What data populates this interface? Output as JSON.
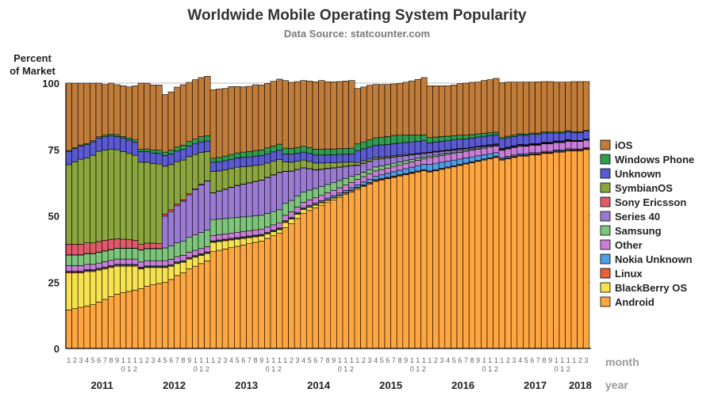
{
  "chart_data": {
    "type": "bar",
    "stacked": true,
    "title": "Worldwide Mobile Operating System Popularity",
    "subtitle": "Data Source: statcounter.com",
    "ylabel_line1": "Percent",
    "ylabel_line2": "of Market",
    "ylim": [
      0,
      100
    ],
    "yticks": [
      "0",
      "25",
      "50",
      "75",
      "100"
    ],
    "yticks_values": [
      0,
      25,
      50,
      75,
      100
    ],
    "grid": true,
    "legend_position": "right",
    "month_axis_label": "month",
    "year_axis_label": "year",
    "years": [
      {
        "label": "2011",
        "months": 12
      },
      {
        "label": "2012",
        "months": 12
      },
      {
        "label": "2013",
        "months": 12
      },
      {
        "label": "2014",
        "months": 12
      },
      {
        "label": "2015",
        "months": 12
      },
      {
        "label": "2016",
        "months": 12
      },
      {
        "label": "2017",
        "months": 12
      },
      {
        "label": "2018",
        "months": 3
      }
    ],
    "month_tick_labels": [
      "1",
      "2",
      "3",
      "4",
      "5",
      "6",
      "7",
      "8",
      "9",
      "10",
      "11",
      "12"
    ],
    "series": [
      {
        "name": "Android",
        "color": "#ffa640",
        "values": [
          14.5,
          15.0,
          15.5,
          16.0,
          16.5,
          17.5,
          18.5,
          19.5,
          20.5,
          21.0,
          21.5,
          22.0,
          22.5,
          23.5,
          24.0,
          24.5,
          25.0,
          26.0,
          27.5,
          28.5,
          30.0,
          31.0,
          32.0,
          33.0,
          36.5,
          37.0,
          37.5,
          38.0,
          38.5,
          39.0,
          39.5,
          40.0,
          40.5,
          41.5,
          42.5,
          43.5,
          45.5,
          47.0,
          49.0,
          51.0,
          52.0,
          53.0,
          54.0,
          55.0,
          56.0,
          57.0,
          58.0,
          59.0,
          60.0,
          61.0,
          62.0,
          63.0,
          63.5,
          64.0,
          64.5,
          65.0,
          65.5,
          66.0,
          66.5,
          67.0,
          66.5,
          67.0,
          67.5,
          68.0,
          68.5,
          69.0,
          69.5,
          70.0,
          70.5,
          71.0,
          71.5,
          72.0,
          71.0,
          71.5,
          72.0,
          72.5,
          72.5,
          73.0,
          73.0,
          73.5,
          73.5,
          74.0,
          74.0,
          74.5,
          74.5,
          74.5,
          75.0
        ]
      },
      {
        "name": "BlackBerry OS",
        "color": "#f6e24f",
        "values": [
          14.0,
          13.5,
          13.0,
          13.0,
          12.5,
          12.0,
          11.5,
          11.0,
          10.5,
          10.0,
          9.5,
          9.0,
          7.5,
          7.0,
          6.5,
          6.0,
          5.5,
          5.0,
          4.5,
          4.0,
          3.7,
          3.4,
          3.1,
          2.8,
          3.5,
          3.3,
          3.1,
          2.9,
          2.7,
          2.5,
          2.3,
          2.1,
          1.9,
          1.7,
          1.5,
          1.3,
          2.0,
          1.8,
          1.6,
          1.4,
          1.2,
          1.0,
          0.9,
          0.8,
          0.7,
          0.6,
          0.5,
          0.4,
          0.4,
          0.35,
          0.3,
          0.3,
          0.25,
          0.2,
          0.2,
          0.2,
          0.15,
          0.15,
          0.1,
          0.1,
          0.1,
          0.1,
          0.1,
          0.1,
          0.1,
          0.1,
          0.1,
          0.1,
          0.1,
          0.1,
          0.1,
          0.1,
          0.1,
          0.1,
          0.1,
          0.1,
          0.1,
          0.1,
          0.1,
          0.1,
          0.1,
          0.1,
          0.1,
          0.1,
          0.1,
          0.1,
          0.1
        ]
      },
      {
        "name": "Linux",
        "color": "#e8603c",
        "values": [
          0.4,
          0.4,
          0.4,
          0.4,
          0.4,
          0.4,
          0.4,
          0.4,
          0.4,
          0.4,
          0.4,
          0.4,
          0.3,
          0.3,
          0.3,
          0.3,
          0.3,
          0.3,
          0.3,
          0.3,
          0.3,
          0.3,
          0.3,
          0.3,
          0.3,
          0.3,
          0.3,
          0.3,
          0.3,
          0.3,
          0.3,
          0.3,
          0.3,
          0.3,
          0.3,
          0.3,
          0.3,
          0.3,
          0.3,
          0.3,
          0.3,
          0.3,
          0.3,
          0.3,
          0.3,
          0.3,
          0.3,
          0.3,
          0.3,
          0.3,
          0.3,
          0.3,
          0.3,
          0.3,
          0.3,
          0.3,
          0.3,
          0.3,
          0.3,
          0.3,
          0.3,
          0.3,
          0.3,
          0.3,
          0.3,
          0.3,
          0.3,
          0.3,
          0.3,
          0.3,
          0.3,
          0.3,
          0.3,
          0.3,
          0.3,
          0.3,
          0.3,
          0.3,
          0.3,
          0.3,
          0.3,
          0.3,
          0.3,
          0.3,
          0.3,
          0.3,
          0.3
        ]
      },
      {
        "name": "Nokia Unknown",
        "color": "#4f9ee8",
        "values": [
          0.3,
          0.3,
          0.3,
          0.3,
          0.3,
          0.3,
          0.3,
          0.3,
          0.3,
          0.3,
          0.3,
          0.3,
          0.3,
          0.3,
          0.3,
          0.3,
          0.3,
          0.3,
          0.3,
          0.3,
          0.3,
          0.3,
          0.3,
          0.3,
          0.3,
          0.3,
          0.3,
          0.3,
          0.3,
          0.3,
          0.3,
          0.3,
          0.3,
          0.3,
          0.3,
          0.3,
          0.4,
          0.4,
          0.4,
          0.4,
          0.5,
          0.5,
          0.5,
          0.6,
          0.6,
          0.7,
          0.8,
          0.9,
          1.0,
          1.1,
          1.2,
          1.3,
          1.4,
          1.5,
          1.6,
          1.7,
          1.8,
          1.9,
          2.0,
          2.0,
          2.5,
          2.4,
          2.3,
          2.2,
          2.1,
          2.0,
          1.9,
          1.8,
          1.7,
          1.6,
          1.5,
          1.4,
          0.5,
          0.5,
          0.5,
          0.5,
          0.5,
          0.4,
          0.4,
          0.4,
          0.4,
          0.4,
          0.4,
          0.4,
          0.3,
          0.3,
          0.3
        ]
      },
      {
        "name": "Other",
        "color": "#c97fd8",
        "values": [
          2.0,
          2.0,
          2.0,
          2.0,
          2.0,
          2.0,
          2.0,
          2.0,
          2.0,
          2.0,
          2.0,
          2.0,
          2.0,
          2.0,
          2.0,
          2.0,
          2.0,
          2.0,
          2.0,
          2.0,
          2.0,
          2.0,
          2.0,
          2.0,
          2.0,
          2.0,
          2.0,
          2.0,
          2.0,
          2.0,
          2.0,
          2.0,
          2.0,
          2.0,
          2.0,
          2.0,
          2.0,
          2.0,
          2.0,
          2.0,
          2.0,
          2.0,
          2.0,
          2.0,
          2.0,
          2.0,
          2.0,
          2.0,
          2.0,
          2.0,
          2.0,
          2.0,
          2.0,
          2.0,
          2.0,
          2.0,
          2.0,
          2.0,
          2.0,
          2.0,
          2.5,
          2.5,
          2.5,
          2.5,
          2.5,
          2.5,
          2.5,
          2.5,
          2.5,
          2.5,
          2.5,
          2.5,
          2.8,
          2.8,
          2.8,
          2.8,
          2.8,
          2.8,
          2.8,
          2.8,
          2.8,
          2.8,
          2.8,
          2.8,
          2.8,
          2.8,
          2.8
        ]
      },
      {
        "name": "Samsung",
        "color": "#7bc67b",
        "values": [
          4.0,
          4.0,
          4.0,
          4.0,
          4.0,
          4.0,
          4.0,
          4.0,
          4.0,
          4.0,
          4.0,
          4.0,
          4.5,
          4.5,
          4.5,
          4.5,
          4.8,
          5.0,
          5.2,
          5.4,
          5.6,
          5.8,
          6.0,
          6.2,
          6.0,
          5.9,
          5.8,
          5.7,
          5.6,
          5.5,
          5.4,
          5.3,
          5.2,
          5.1,
          5.0,
          4.9,
          4.5,
          4.3,
          4.1,
          3.9,
          3.7,
          3.5,
          3.3,
          3.1,
          2.9,
          2.7,
          2.5,
          2.3,
          1.8,
          1.7,
          1.6,
          1.5,
          1.4,
          1.3,
          1.2,
          1.1,
          1.0,
          0.9,
          0.8,
          0.7,
          0.6,
          0.6,
          0.6,
          0.5,
          0.5,
          0.5,
          0.4,
          0.4,
          0.4,
          0.4,
          0.3,
          0.3,
          0.2,
          0.2,
          0.2,
          0.2,
          0.2,
          0.2,
          0.2,
          0.2,
          0.2,
          0.2,
          0.2,
          0.2,
          0.1,
          0.1,
          0.1
        ]
      },
      {
        "name": "Series 40",
        "color": "#9b7ad4",
        "values": [
          0.1,
          0.1,
          0.1,
          0.1,
          0.1,
          0.1,
          0.1,
          0.1,
          0.1,
          0.1,
          0.1,
          0.1,
          0.1,
          0.1,
          0.1,
          0.1,
          12.0,
          13.0,
          14.0,
          15.0,
          16.0,
          17.0,
          18.0,
          18.5,
          10.0,
          10.5,
          11.0,
          11.5,
          12.0,
          12.3,
          12.6,
          12.9,
          13.2,
          13.5,
          13.8,
          14.0,
          12.0,
          11.0,
          10.0,
          9.0,
          8.0,
          7.0,
          6.5,
          6.0,
          5.5,
          5.0,
          4.5,
          4.0,
          3.5,
          3.3,
          3.1,
          2.9,
          2.7,
          2.5,
          2.3,
          2.1,
          1.9,
          1.7,
          1.5,
          1.3,
          1.2,
          1.1,
          1.0,
          0.9,
          0.8,
          0.7,
          0.6,
          0.5,
          0.5,
          0.4,
          0.4,
          0.3,
          0.3,
          0.3,
          0.3,
          0.3,
          0.2,
          0.2,
          0.2,
          0.2,
          0.2,
          0.2,
          0.2,
          0.2,
          0.1,
          0.1,
          0.1
        ]
      },
      {
        "name": "Sony Ericsson",
        "color": "#e05a6a",
        "values": [
          4.0,
          4.0,
          4.0,
          4.0,
          4.0,
          4.0,
          4.0,
          3.8,
          3.6,
          3.4,
          3.2,
          3.0,
          2.0,
          2.0,
          2.0,
          1.8,
          0.8,
          0.7,
          0.6,
          0.5,
          0.4,
          0.3,
          0.2,
          0.1,
          0.1,
          0.1,
          0.1,
          0.1,
          0.1,
          0.1,
          0.1,
          0.1,
          0.1,
          0.1,
          0.1,
          0.1,
          0.1,
          0.1,
          0.1,
          0.1,
          0.1,
          0.1,
          0.1,
          0.1,
          0.1,
          0.1,
          0.1,
          0.1,
          0.1,
          0.1,
          0.1,
          0.1,
          0.1,
          0.1,
          0.1,
          0.1,
          0.1,
          0.1,
          0.1,
          0.1,
          0.1,
          0.1,
          0.1,
          0.1,
          0.1,
          0.1,
          0.1,
          0.1,
          0.1,
          0.1,
          0.1,
          0.1,
          0.1,
          0.1,
          0.1,
          0.1,
          0.1,
          0.1,
          0.1,
          0.1,
          0.1,
          0.1,
          0.1,
          0.1,
          0.1,
          0.1,
          0.1
        ]
      },
      {
        "name": "SymbianOS",
        "color": "#8aa63c",
        "values": [
          30.0,
          31.0,
          32.0,
          32.0,
          33.0,
          34.0,
          34.0,
          34.0,
          33.5,
          33.0,
          32.5,
          32.0,
          31.0,
          30.5,
          30.0,
          30.0,
          18.0,
          17.0,
          16.0,
          15.0,
          14.0,
          13.0,
          12.0,
          11.0,
          8.0,
          7.5,
          7.2,
          7.0,
          6.8,
          6.5,
          6.2,
          6.0,
          5.7,
          5.4,
          5.1,
          4.8,
          3.5,
          3.3,
          3.1,
          2.9,
          2.7,
          2.5,
          2.3,
          2.1,
          1.9,
          1.7,
          1.5,
          1.3,
          1.0,
          0.9,
          0.8,
          0.7,
          0.6,
          0.5,
          0.5,
          0.4,
          0.4,
          0.3,
          0.3,
          0.3,
          0.2,
          0.2,
          0.2,
          0.2,
          0.2,
          0.2,
          0.1,
          0.1,
          0.1,
          0.1,
          0.1,
          0.1,
          0.1,
          0.1,
          0.1,
          0.1,
          0.1,
          0.1,
          0.1,
          0.1,
          0.1,
          0.1,
          0.1,
          0.1,
          0.1,
          0.1,
          0.1
        ]
      },
      {
        "name": "Unknown",
        "color": "#5a5ad4",
        "values": [
          5.0,
          5.0,
          5.0,
          5.0,
          5.0,
          5.0,
          5.0,
          5.0,
          5.0,
          5.0,
          5.0,
          5.0,
          4.0,
          4.0,
          4.0,
          4.0,
          4.0,
          4.0,
          4.0,
          4.0,
          4.0,
          4.0,
          4.0,
          4.0,
          3.5,
          3.5,
          3.5,
          3.5,
          3.5,
          3.5,
          3.5,
          3.5,
          3.5,
          3.5,
          3.5,
          3.5,
          3.0,
          3.0,
          3.0,
          3.0,
          3.0,
          3.0,
          3.0,
          3.0,
          3.0,
          3.0,
          3.0,
          3.0,
          4.5,
          4.5,
          4.5,
          4.5,
          4.5,
          4.5,
          4.5,
          4.5,
          4.5,
          4.5,
          4.5,
          4.5,
          3.5,
          3.5,
          3.5,
          3.5,
          3.5,
          3.5,
          3.5,
          3.5,
          3.5,
          3.5,
          3.5,
          3.5,
          3.5,
          3.5,
          3.5,
          3.5,
          3.5,
          3.5,
          3.5,
          3.5,
          3.5,
          3.0,
          3.0,
          3.0,
          3.0,
          3.0,
          3.0
        ]
      },
      {
        "name": "Windows Phone",
        "color": "#2e9e4e",
        "values": [
          0.3,
          0.3,
          0.4,
          0.4,
          0.5,
          0.5,
          0.6,
          0.6,
          0.7,
          0.7,
          0.8,
          0.8,
          0.9,
          1.0,
          1.1,
          1.2,
          1.3,
          1.4,
          1.5,
          1.6,
          1.7,
          1.8,
          1.9,
          2.0,
          1.5,
          1.6,
          1.7,
          1.8,
          1.9,
          2.0,
          2.0,
          2.1,
          2.1,
          2.2,
          2.2,
          2.3,
          2.2,
          2.2,
          2.2,
          2.2,
          2.2,
          2.2,
          2.2,
          2.2,
          2.2,
          2.2,
          2.2,
          2.2,
          2.5,
          2.6,
          2.7,
          2.8,
          2.9,
          3.0,
          3.1,
          3.0,
          2.8,
          2.6,
          2.4,
          2.2,
          2.0,
          1.9,
          1.8,
          1.7,
          1.6,
          1.5,
          1.4,
          1.3,
          1.2,
          1.1,
          1.0,
          0.9,
          0.6,
          0.6,
          0.6,
          0.5,
          0.5,
          0.5,
          0.5,
          0.4,
          0.4,
          0.4,
          0.4,
          0.4,
          0.3,
          0.3,
          0.3
        ]
      },
      {
        "name": "iOS",
        "color": "#c17c3a",
        "values": [
          25.4,
          24.4,
          23.3,
          22.8,
          21.7,
          20.2,
          19.1,
          19.3,
          18.8,
          19.1,
          19.3,
          20.4,
          24.9,
          24.8,
          24.5,
          24.6,
          21.7,
          22.0,
          22.6,
          22.8,
          22.3,
          22.4,
          22.3,
          22.4,
          25.8,
          25.8,
          25.5,
          25.6,
          25.0,
          24.6,
          24.6,
          24.8,
          24.5,
          24.3,
          24.4,
          24.5,
          25.5,
          24.9,
          24.8,
          24.8,
          25.1,
          25.4,
          25.9,
          25.3,
          25.3,
          25.3,
          25.4,
          25.5,
          20.9,
          20.7,
          20.6,
          20.1,
          19.8,
          19.6,
          19.4,
          19.5,
          19.9,
          20.4,
          20.9,
          21.6,
          19.5,
          19.3,
          19.1,
          19.0,
          19.1,
          19.4,
          19.6,
          19.7,
          19.5,
          19.9,
          20.0,
          20.3,
          20.7,
          20.4,
          19.9,
          19.5,
          19.6,
          19.2,
          19.3,
          19.0,
          19.0,
          18.8,
          18.8,
          18.3,
          18.9,
          18.9,
          18.4
        ]
      }
    ]
  }
}
